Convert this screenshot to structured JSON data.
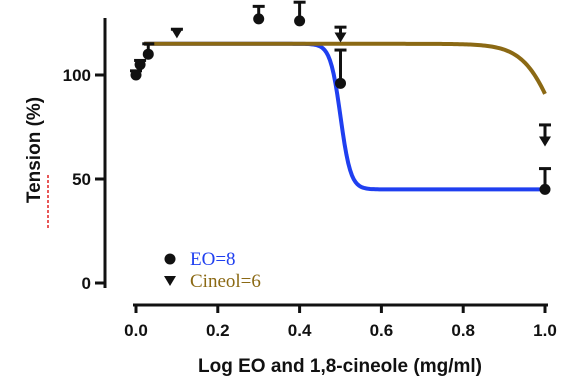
{
  "chart_data": {
    "type": "scatter",
    "xlabel": "Log EO and 1,8-cineole (mg/ml)",
    "ylabel": "Tension (%)",
    "xlim": [
      0,
      1.0
    ],
    "ylim": [
      0,
      125
    ],
    "x_ticks": [
      "0.0",
      "0.2",
      "0.4",
      "0.6",
      "0.8",
      "1.0"
    ],
    "y_ticks": [
      "0",
      "50",
      "100"
    ],
    "x_tick_values": [
      0,
      0.2,
      0.4,
      0.6,
      0.8,
      1.0
    ],
    "y_tick_values": [
      0,
      50,
      100
    ],
    "grid": false,
    "legend_position": "bottom-left",
    "series": [
      {
        "name": "EO=8",
        "marker": "circle",
        "color": "#1f3ff0",
        "points": [
          {
            "x": 0.0,
            "y": 100,
            "err": 2
          },
          {
            "x": 0.01,
            "y": 105,
            "err": 2
          },
          {
            "x": 0.03,
            "y": 110,
            "err": 5
          },
          {
            "x": 0.3,
            "y": 127,
            "err": 6
          },
          {
            "x": 0.4,
            "y": 126,
            "err": 9
          },
          {
            "x": 0.5,
            "y": 96,
            "err": 16
          },
          {
            "x": 1.0,
            "y": 45,
            "err": 10
          }
        ],
        "fit": {
          "top": 115,
          "bottom": 45,
          "midpoint": 0.5,
          "slope": 80
        }
      },
      {
        "name": "Cineol=6",
        "marker": "triangle-down",
        "color": "#8b6914",
        "points": [
          {
            "x": 0.1,
            "y": 120,
            "err": 2
          },
          {
            "x": 0.5,
            "y": 118,
            "err": 5
          },
          {
            "x": 1.0,
            "y": 68,
            "err": 8
          }
        ],
        "fit": {
          "top": 115,
          "bottom": 40,
          "midpoint": 1.03,
          "slope": 25
        }
      }
    ]
  },
  "legend": {
    "items": [
      {
        "label": "EO=8",
        "color": "#1f3ff0"
      },
      {
        "label": "Cineol=6",
        "color": "#8b6914"
      }
    ]
  }
}
